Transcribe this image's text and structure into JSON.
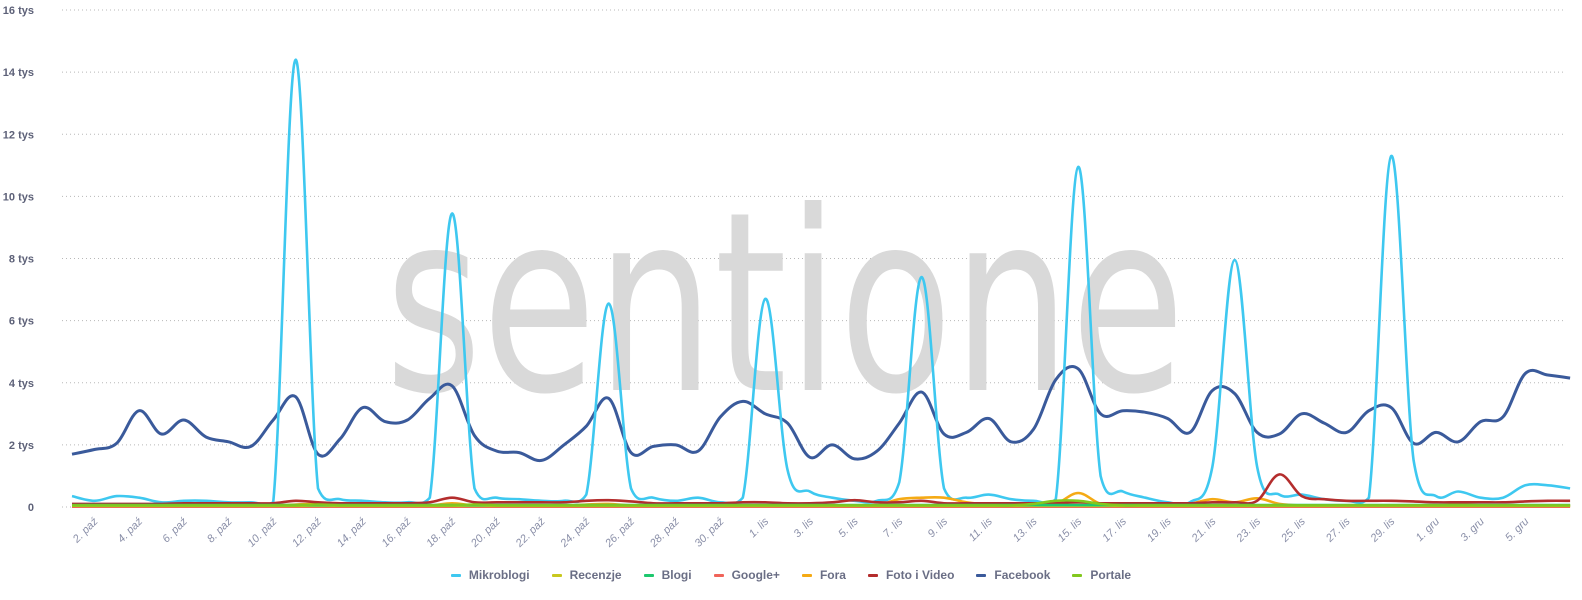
{
  "watermark": "sentione",
  "chart_data": {
    "type": "line",
    "title": "",
    "xlabel": "",
    "ylabel": "",
    "ylim": [
      0,
      16
    ],
    "yticks": [
      "0",
      "2 tys",
      "4 tys",
      "6 tys",
      "8 tys",
      "10 tys",
      "12 tys",
      "14 tys",
      "16 tys"
    ],
    "ytick_values": [
      0,
      2,
      4,
      6,
      8,
      10,
      12,
      14,
      16
    ],
    "y_unit": "tys",
    "grid": true,
    "legend_position": "bottom",
    "x_start": "1. paź",
    "x_end": "7. gru",
    "xtick_labels": [
      "2. paź",
      "4. paź",
      "6. paź",
      "8. paź",
      "10. paź",
      "12. paź",
      "14. paź",
      "16. paź",
      "18. paź",
      "20. paź",
      "22. paź",
      "24. paź",
      "26. paź",
      "28. paź",
      "30. paź",
      "1. lis",
      "3. lis",
      "5. lis",
      "7. lis",
      "9. lis",
      "11. lis",
      "13. lis",
      "15. lis",
      "17. lis",
      "19. lis",
      "21. lis",
      "23. lis",
      "25. lis",
      "27. lis",
      "29. lis",
      "1. gru",
      "3. gru",
      "5. gru"
    ],
    "series": [
      {
        "name": "Mikroblogi",
        "color": "#3ec8f0",
        "values": [
          0.35,
          0.2,
          0.35,
          0.3,
          0.15,
          0.2,
          0.2,
          0.15,
          0.15,
          0.15,
          14.4,
          0.6,
          0.25,
          0.2,
          0.15,
          0.15,
          0.3,
          9.45,
          0.6,
          0.3,
          0.25,
          0.2,
          0.2,
          0.4,
          6.55,
          0.6,
          0.3,
          0.2,
          0.3,
          0.15,
          0.3,
          6.7,
          1.2,
          0.5,
          0.3,
          0.2,
          0.2,
          0.8,
          7.4,
          0.6,
          0.3,
          0.4,
          0.25,
          0.2,
          0.25,
          10.95,
          1.0,
          0.5,
          0.3,
          0.15,
          0.15,
          1.3,
          7.95,
          1.3,
          0.4,
          0.4,
          0.25,
          0.2,
          0.3,
          11.3,
          1.5,
          0.35,
          0.5,
          0.3,
          0.3,
          0.7,
          0.7,
          0.6
        ]
      },
      {
        "name": "Recenzje",
        "color": "#c8c81e",
        "values": [
          0.04,
          0.04,
          0.04,
          0.04,
          0.04,
          0.04,
          0.04,
          0.04,
          0.04,
          0.04,
          0.04,
          0.04,
          0.04,
          0.04,
          0.04,
          0.04,
          0.04,
          0.04,
          0.04,
          0.04,
          0.04,
          0.04,
          0.04,
          0.04,
          0.04,
          0.04,
          0.04,
          0.04,
          0.04,
          0.04,
          0.04,
          0.04,
          0.04,
          0.04,
          0.04,
          0.04,
          0.04,
          0.04,
          0.04,
          0.04,
          0.04,
          0.04,
          0.04,
          0.04,
          0.04,
          0.04,
          0.04,
          0.04,
          0.04,
          0.04,
          0.04,
          0.04,
          0.04,
          0.04,
          0.04,
          0.04,
          0.04,
          0.04,
          0.04,
          0.04,
          0.04,
          0.04,
          0.04,
          0.04,
          0.04,
          0.04,
          0.04,
          0.04
        ]
      },
      {
        "name": "Blogi",
        "color": "#1ec86e",
        "values": [
          0.06,
          0.06,
          0.06,
          0.06,
          0.06,
          0.06,
          0.06,
          0.06,
          0.06,
          0.06,
          0.06,
          0.06,
          0.06,
          0.06,
          0.06,
          0.06,
          0.06,
          0.06,
          0.06,
          0.06,
          0.06,
          0.06,
          0.06,
          0.06,
          0.06,
          0.06,
          0.06,
          0.06,
          0.06,
          0.06,
          0.06,
          0.06,
          0.06,
          0.06,
          0.06,
          0.06,
          0.06,
          0.06,
          0.06,
          0.06,
          0.06,
          0.06,
          0.06,
          0.06,
          0.06,
          0.06,
          0.06,
          0.06,
          0.06,
          0.06,
          0.06,
          0.06,
          0.06,
          0.06,
          0.06,
          0.06,
          0.06,
          0.06,
          0.06,
          0.06,
          0.06,
          0.06,
          0.06,
          0.06,
          0.06,
          0.06,
          0.06,
          0.06
        ]
      },
      {
        "name": "Google+",
        "color": "#f0645a",
        "values": [
          0.01,
          0.01,
          0.01,
          0.01,
          0.01,
          0.01,
          0.01,
          0.01,
          0.01,
          0.01,
          0.01,
          0.01,
          0.01,
          0.01,
          0.01,
          0.01,
          0.01,
          0.01,
          0.01,
          0.01,
          0.01,
          0.01,
          0.01,
          0.01,
          0.01,
          0.01,
          0.01,
          0.01,
          0.01,
          0.01,
          0.01,
          0.01,
          0.01,
          0.01,
          0.01,
          0.01,
          0.01,
          0.01,
          0.01,
          0.01,
          0.01,
          0.01,
          0.01,
          0.01,
          0.01,
          0.01,
          0.01,
          0.01,
          0.01,
          0.01,
          0.01,
          0.01,
          0.01,
          0.01,
          0.01,
          0.01,
          0.01,
          0.01,
          0.01,
          0.01,
          0.01,
          0.01,
          0.01,
          0.01,
          0.01,
          0.01,
          0.01,
          0.01
        ]
      },
      {
        "name": "Fora",
        "color": "#f5aa14",
        "values": [
          0.05,
          0.05,
          0.05,
          0.05,
          0.05,
          0.05,
          0.05,
          0.05,
          0.05,
          0.05,
          0.08,
          0.1,
          0.05,
          0.05,
          0.05,
          0.05,
          0.05,
          0.12,
          0.05,
          0.05,
          0.05,
          0.05,
          0.05,
          0.08,
          0.1,
          0.05,
          0.05,
          0.05,
          0.05,
          0.05,
          0.05,
          0.05,
          0.05,
          0.05,
          0.05,
          0.05,
          0.05,
          0.25,
          0.3,
          0.3,
          0.15,
          0.08,
          0.05,
          0.05,
          0.1,
          0.45,
          0.1,
          0.05,
          0.05,
          0.05,
          0.1,
          0.25,
          0.15,
          0.28,
          0.1,
          0.05,
          0.05,
          0.05,
          0.05,
          0.05,
          0.05,
          0.05,
          0.08,
          0.05,
          0.05,
          0.05,
          0.05,
          0.05
        ]
      },
      {
        "name": "Foto i Video",
        "color": "#b42d2d",
        "values": [
          0.1,
          0.1,
          0.1,
          0.1,
          0.1,
          0.12,
          0.12,
          0.12,
          0.12,
          0.12,
          0.2,
          0.15,
          0.12,
          0.12,
          0.12,
          0.12,
          0.15,
          0.3,
          0.15,
          0.15,
          0.15,
          0.15,
          0.15,
          0.2,
          0.22,
          0.18,
          0.12,
          0.12,
          0.12,
          0.12,
          0.15,
          0.15,
          0.12,
          0.12,
          0.15,
          0.22,
          0.15,
          0.15,
          0.2,
          0.12,
          0.12,
          0.12,
          0.12,
          0.12,
          0.12,
          0.15,
          0.12,
          0.12,
          0.12,
          0.12,
          0.12,
          0.15,
          0.15,
          0.2,
          1.05,
          0.35,
          0.25,
          0.2,
          0.2,
          0.2,
          0.18,
          0.15,
          0.15,
          0.15,
          0.15,
          0.18,
          0.2,
          0.2
        ]
      },
      {
        "name": "Facebook",
        "color": "#3a5a9b",
        "values": [
          1.7,
          1.85,
          2.05,
          3.1,
          2.35,
          2.8,
          2.25,
          2.1,
          1.95,
          2.8,
          3.55,
          1.7,
          2.2,
          3.2,
          2.75,
          2.8,
          3.5,
          3.9,
          2.3,
          1.8,
          1.75,
          1.5,
          2.0,
          2.6,
          3.5,
          1.75,
          1.95,
          2.0,
          1.8,
          2.9,
          3.4,
          3.0,
          2.7,
          1.6,
          2.0,
          1.55,
          1.8,
          2.7,
          3.7,
          2.35,
          2.4,
          2.85,
          2.1,
          2.5,
          4.1,
          4.45,
          3.0,
          3.1,
          3.05,
          2.85,
          2.4,
          3.75,
          3.65,
          2.4,
          2.35,
          3.0,
          2.7,
          2.4,
          3.1,
          3.2,
          2.05,
          2.4,
          2.1,
          2.75,
          2.9,
          4.3,
          4.25,
          4.15
        ]
      },
      {
        "name": "Portale",
        "color": "#82c81e",
        "values": [
          0.05,
          0.05,
          0.05,
          0.05,
          0.05,
          0.05,
          0.05,
          0.05,
          0.05,
          0.05,
          0.05,
          0.08,
          0.05,
          0.05,
          0.05,
          0.05,
          0.05,
          0.05,
          0.08,
          0.05,
          0.05,
          0.05,
          0.05,
          0.05,
          0.05,
          0.05,
          0.05,
          0.05,
          0.05,
          0.05,
          0.05,
          0.05,
          0.05,
          0.05,
          0.05,
          0.05,
          0.05,
          0.05,
          0.05,
          0.05,
          0.05,
          0.05,
          0.05,
          0.1,
          0.2,
          0.2,
          0.1,
          0.05,
          0.05,
          0.05,
          0.05,
          0.05,
          0.05,
          0.05,
          0.05,
          0.05,
          0.05,
          0.05,
          0.05,
          0.05,
          0.05,
          0.05,
          0.05,
          0.05,
          0.05,
          0.05,
          0.05,
          0.05
        ]
      }
    ]
  }
}
